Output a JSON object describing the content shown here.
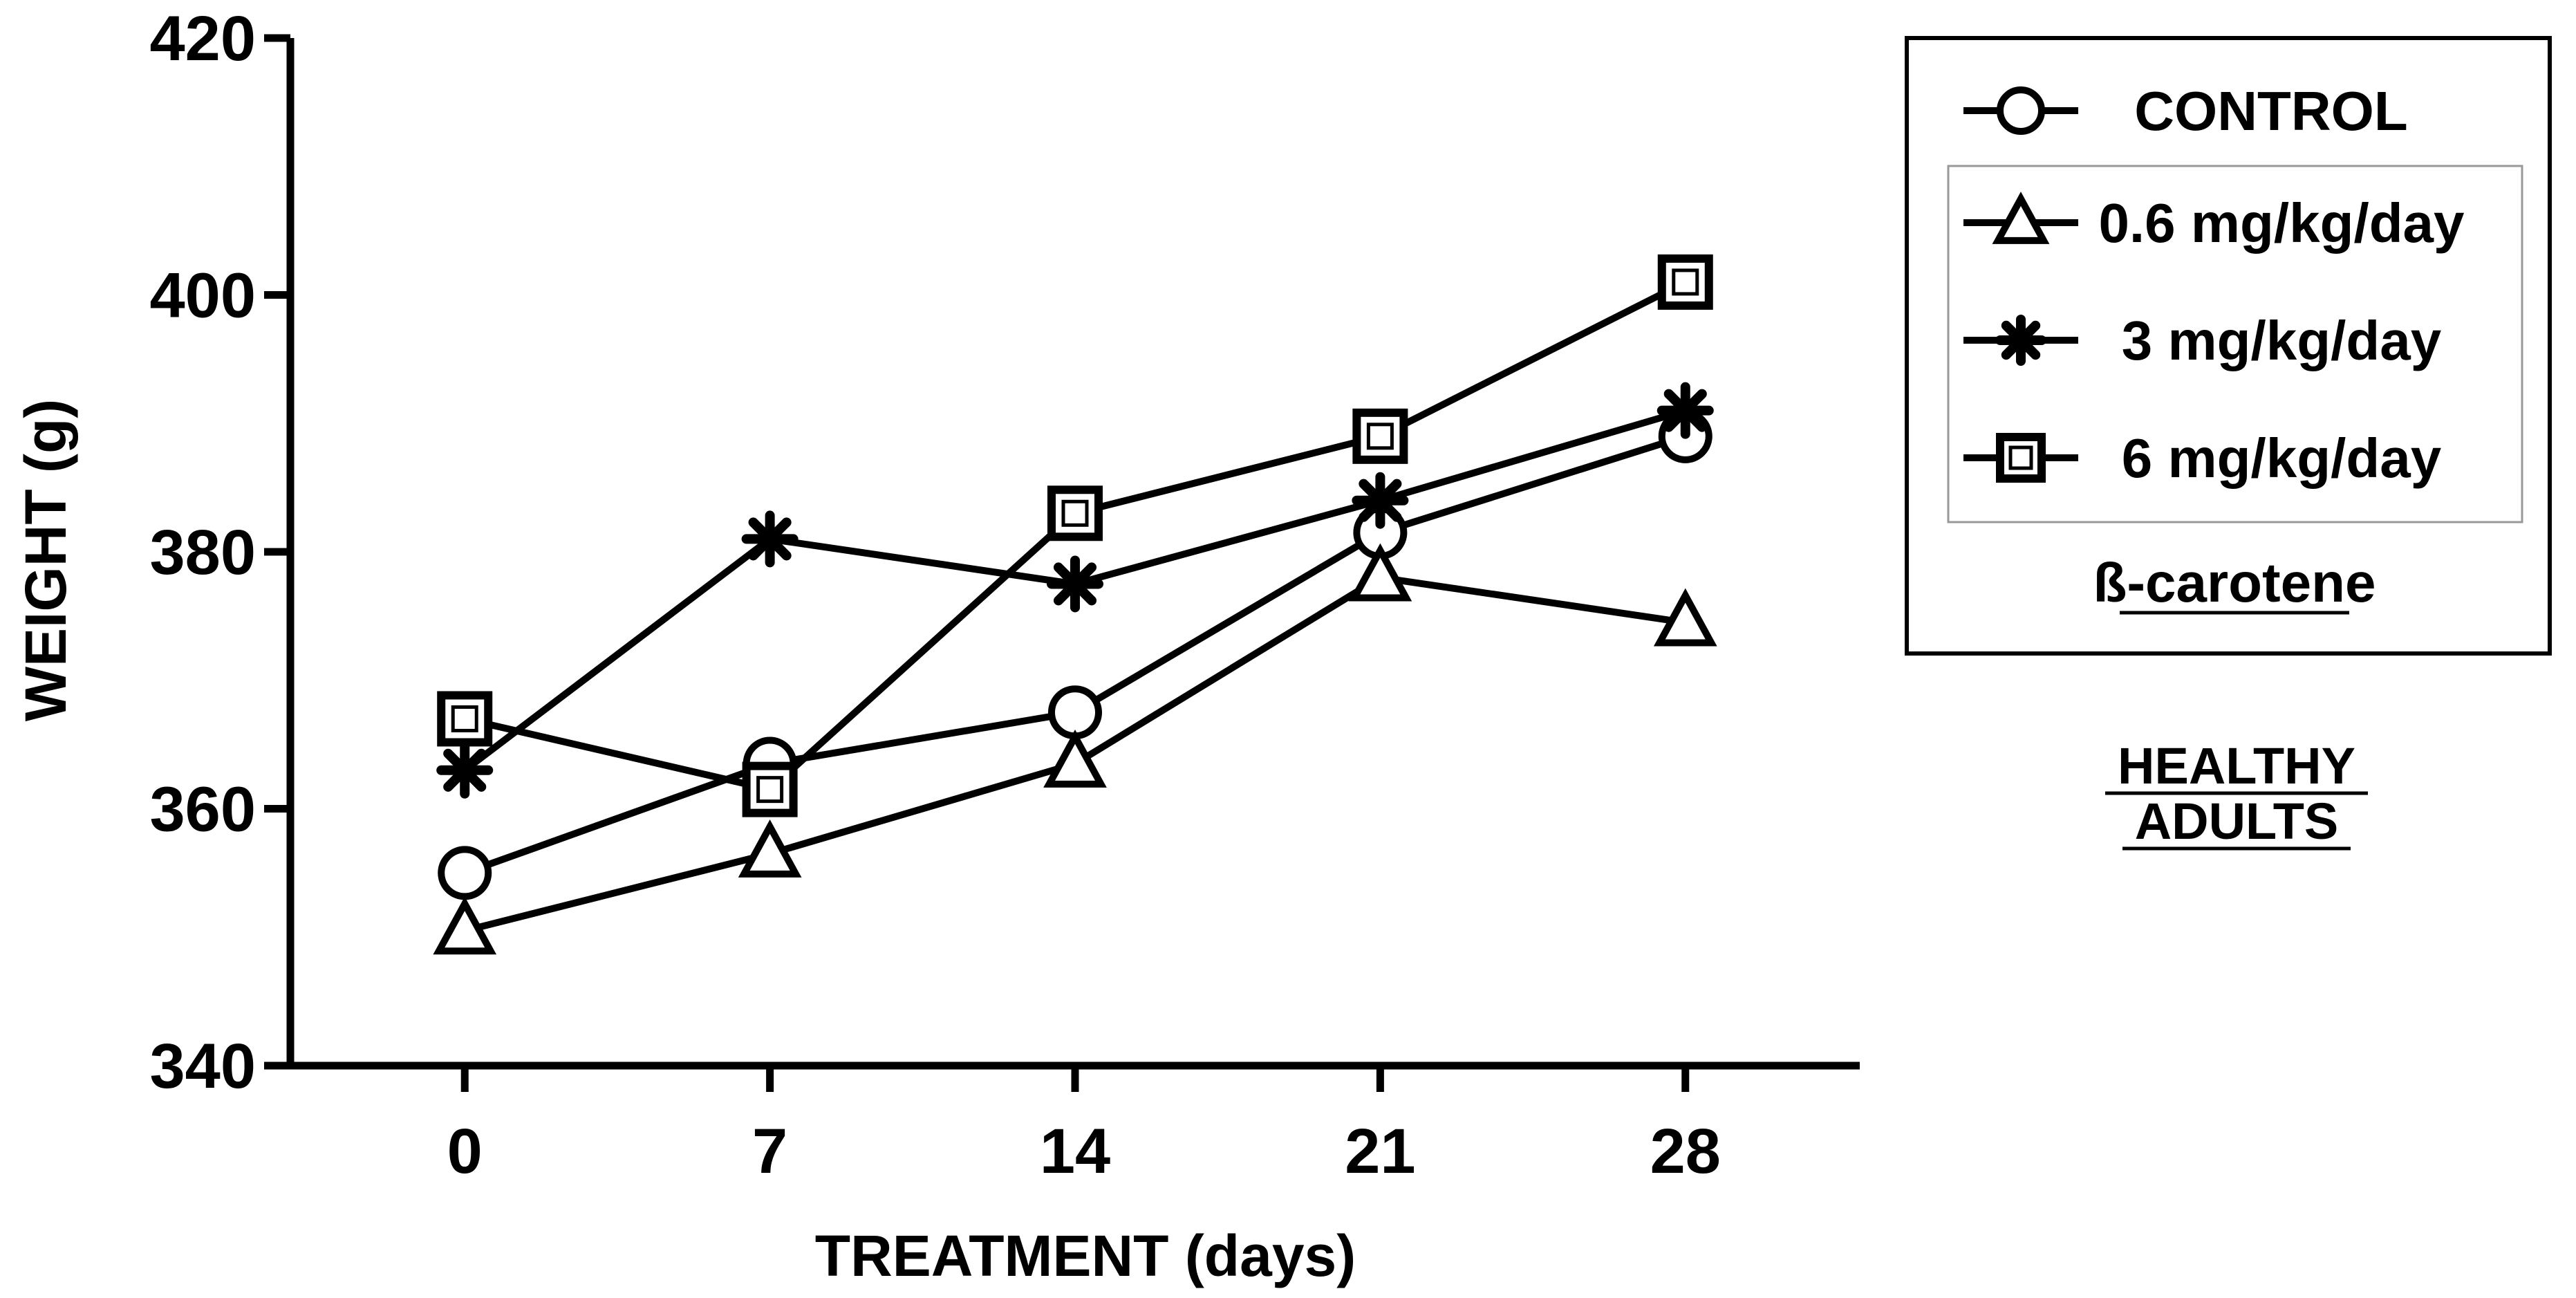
{
  "chart_data": {
    "type": "line",
    "title": "",
    "xlabel": "TREATMENT (days)",
    "ylabel": "WEIGHT (g)",
    "x": [
      0,
      7,
      14,
      21,
      28
    ],
    "x_tick_labels": [
      "0",
      "7",
      "14",
      "21",
      "28"
    ],
    "y_ticks": [
      340,
      360,
      380,
      400,
      420
    ],
    "y_tick_labels": [
      "340",
      "360",
      "380",
      "400",
      "420"
    ],
    "xlim": [
      -4,
      32
    ],
    "ylim": [
      340,
      420
    ],
    "grid": false,
    "series": [
      {
        "name": "CONTROL",
        "marker": "circle",
        "values": [
          355,
          363.5,
          367.5,
          381.5,
          389
        ]
      },
      {
        "name": "0.6 mg/kg/day",
        "marker": "triangle",
        "values": [
          350.5,
          356.5,
          363.5,
          378,
          374.5
        ]
      },
      {
        "name": "3 mg/kg/day",
        "marker": "asterisk",
        "values": [
          363,
          381,
          377.5,
          384,
          391
        ]
      },
      {
        "name": "6 mg/kg/day",
        "marker": "square",
        "values": [
          367,
          361.5,
          383,
          389,
          401
        ]
      }
    ],
    "legend": {
      "placement": "top-right",
      "group_label": "ß-carotene"
    },
    "annotation": {
      "line1": "HEALTHY",
      "line2": "ADULTS"
    },
    "colors": {
      "line": "#000000",
      "background": "#ffffff"
    }
  }
}
